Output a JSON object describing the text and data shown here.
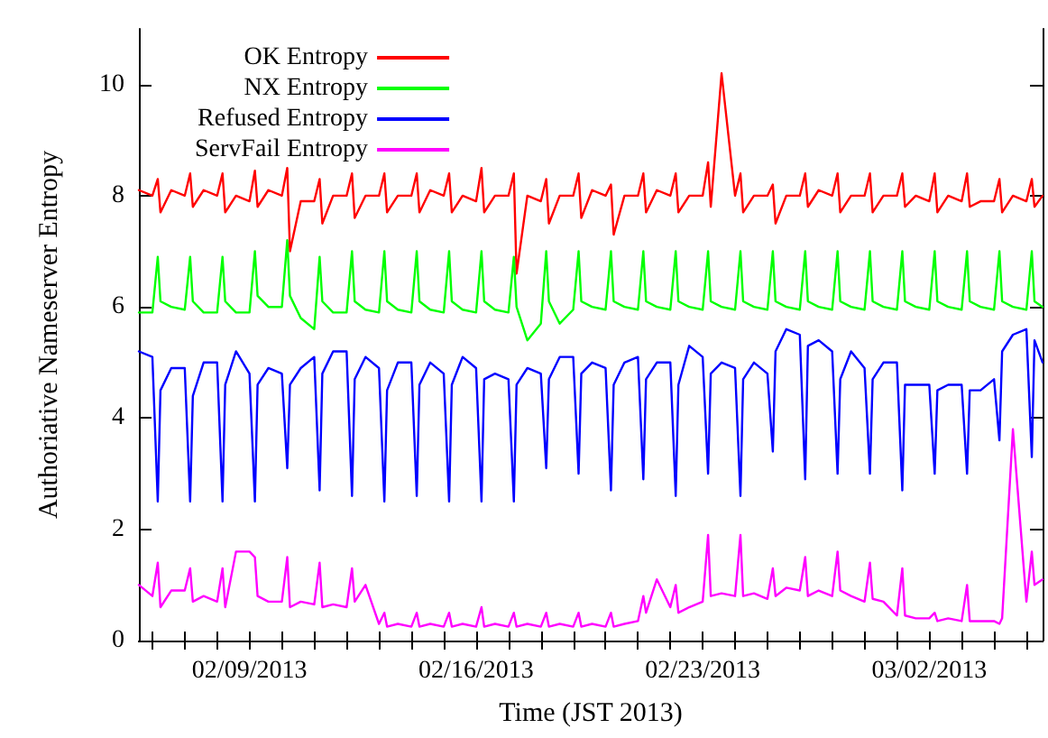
{
  "chart_data": {
    "type": "line",
    "xlabel": "Time (JST 2013)",
    "ylabel": "Authoriative Nameserver Entropy",
    "xlim": [
      "2013-02-05T14:00",
      "2013-03-05T12:00"
    ],
    "ylim": [
      0,
      11
    ],
    "xticks": [
      {
        "value": "2013-02-06",
        "label": null
      },
      {
        "value": "2013-02-07",
        "label": null
      },
      {
        "value": "2013-02-08",
        "label": null
      },
      {
        "value": "2013-02-09",
        "label": "02/09/2013"
      },
      {
        "value": "2013-02-10",
        "label": null
      },
      {
        "value": "2013-02-11",
        "label": null
      },
      {
        "value": "2013-02-12",
        "label": null
      },
      {
        "value": "2013-02-13",
        "label": null
      },
      {
        "value": "2013-02-14",
        "label": null
      },
      {
        "value": "2013-02-15",
        "label": null
      },
      {
        "value": "2013-02-16",
        "label": "02/16/2013"
      },
      {
        "value": "2013-02-17",
        "label": null
      },
      {
        "value": "2013-02-18",
        "label": null
      },
      {
        "value": "2013-02-19",
        "label": null
      },
      {
        "value": "2013-02-20",
        "label": null
      },
      {
        "value": "2013-02-21",
        "label": null
      },
      {
        "value": "2013-02-22",
        "label": null
      },
      {
        "value": "2013-02-23",
        "label": "02/23/2013"
      },
      {
        "value": "2013-02-24",
        "label": null
      },
      {
        "value": "2013-02-25",
        "label": null
      },
      {
        "value": "2013-02-26",
        "label": null
      },
      {
        "value": "2013-02-27",
        "label": null
      },
      {
        "value": "2013-02-28",
        "label": null
      },
      {
        "value": "2013-03-01",
        "label": null
      },
      {
        "value": "2013-03-02",
        "label": "03/02/2013"
      },
      {
        "value": "2013-03-03",
        "label": null
      },
      {
        "value": "2013-03-04",
        "label": null
      },
      {
        "value": "2013-03-05",
        "label": null
      }
    ],
    "yticks": [
      0,
      2,
      4,
      6,
      8,
      10
    ],
    "grid": false,
    "legend": "top left",
    "marker": "none",
    "line_style": "solid",
    "x": [
      "2013-02-05T14:00",
      "2013-02-06T00:00",
      "2013-02-06T04:00",
      "2013-02-06T06:00",
      "2013-02-06T14:00",
      "2013-02-07T00:00",
      "2013-02-07T04:00",
      "2013-02-07T06:00",
      "2013-02-07T14:00",
      "2013-02-08T00:00",
      "2013-02-08T04:00",
      "2013-02-08T06:00",
      "2013-02-08T14:00",
      "2013-02-09T00:00",
      "2013-02-09T04:00",
      "2013-02-09T06:00",
      "2013-02-09T14:00",
      "2013-02-10T00:00",
      "2013-02-10T04:00",
      "2013-02-10T06:00",
      "2013-02-10T14:00",
      "2013-02-11T00:00",
      "2013-02-11T04:00",
      "2013-02-11T06:00",
      "2013-02-11T14:00",
      "2013-02-12T00:00",
      "2013-02-12T04:00",
      "2013-02-12T06:00",
      "2013-02-12T14:00",
      "2013-02-13T00:00",
      "2013-02-13T04:00",
      "2013-02-13T06:00",
      "2013-02-13T14:00",
      "2013-02-14T00:00",
      "2013-02-14T04:00",
      "2013-02-14T06:00",
      "2013-02-14T14:00",
      "2013-02-15T00:00",
      "2013-02-15T04:00",
      "2013-02-15T06:00",
      "2013-02-15T14:00",
      "2013-02-16T00:00",
      "2013-02-16T04:00",
      "2013-02-16T06:00",
      "2013-02-16T14:00",
      "2013-02-17T00:00",
      "2013-02-17T04:00",
      "2013-02-17T06:00",
      "2013-02-17T14:00",
      "2013-02-18T00:00",
      "2013-02-18T04:00",
      "2013-02-18T06:00",
      "2013-02-18T14:00",
      "2013-02-19T00:00",
      "2013-02-19T04:00",
      "2013-02-19T06:00",
      "2013-02-19T14:00",
      "2013-02-20T00:00",
      "2013-02-20T04:00",
      "2013-02-20T06:00",
      "2013-02-20T14:00",
      "2013-02-21T00:00",
      "2013-02-21T04:00",
      "2013-02-21T06:00",
      "2013-02-21T14:00",
      "2013-02-22T00:00",
      "2013-02-22T04:00",
      "2013-02-22T06:00",
      "2013-02-22T14:00",
      "2013-02-23T00:00",
      "2013-02-23T04:00",
      "2013-02-23T06:00",
      "2013-02-23T14:00",
      "2013-02-24T00:00",
      "2013-02-24T04:00",
      "2013-02-24T06:00",
      "2013-02-24T14:00",
      "2013-02-25T00:00",
      "2013-02-25T04:00",
      "2013-02-25T06:00",
      "2013-02-25T14:00",
      "2013-02-26T00:00",
      "2013-02-26T04:00",
      "2013-02-26T06:00",
      "2013-02-26T14:00",
      "2013-02-27T00:00",
      "2013-02-27T04:00",
      "2013-02-27T06:00",
      "2013-02-27T14:00",
      "2013-02-28T00:00",
      "2013-02-28T04:00",
      "2013-02-28T06:00",
      "2013-02-28T14:00",
      "2013-03-01T00:00",
      "2013-03-01T04:00",
      "2013-03-01T06:00",
      "2013-03-01T14:00",
      "2013-03-02T00:00",
      "2013-03-02T04:00",
      "2013-03-02T06:00",
      "2013-03-02T14:00",
      "2013-03-03T00:00",
      "2013-03-03T04:00",
      "2013-03-03T06:00",
      "2013-03-03T14:00",
      "2013-03-04T00:00",
      "2013-03-04T04:00",
      "2013-03-04T06:00",
      "2013-03-04T14:00",
      "2013-03-05T00:00",
      "2013-03-05T04:00",
      "2013-03-05T06:00",
      "2013-03-05T12:00"
    ],
    "series": [
      {
        "name": "OK Entropy",
        "color": "#ff0000",
        "values": [
          8.1,
          8.0,
          8.3,
          7.7,
          8.1,
          8.0,
          8.4,
          7.8,
          8.1,
          8.0,
          8.4,
          7.7,
          8.0,
          7.9,
          8.45,
          7.8,
          8.1,
          8.0,
          8.5,
          7.0,
          7.9,
          7.9,
          8.3,
          7.5,
          8.0,
          8.0,
          8.4,
          7.6,
          8.0,
          8.0,
          8.4,
          7.7,
          8.0,
          8.0,
          8.4,
          7.7,
          8.1,
          8.0,
          8.4,
          7.7,
          8.0,
          7.9,
          8.5,
          7.7,
          8.0,
          8.0,
          8.4,
          6.6,
          8.0,
          7.9,
          8.3,
          7.5,
          8.0,
          8.0,
          8.4,
          7.6,
          8.1,
          8.0,
          8.2,
          7.3,
          8.0,
          8.0,
          8.4,
          7.7,
          8.1,
          8.0,
          8.4,
          7.7,
          8.0,
          8.0,
          8.6,
          7.8,
          10.2,
          8.0,
          8.4,
          7.7,
          8.0,
          8.0,
          8.2,
          7.5,
          8.0,
          8.0,
          8.4,
          7.8,
          8.1,
          8.0,
          8.4,
          7.7,
          8.0,
          8.0,
          8.4,
          7.7,
          8.0,
          8.0,
          8.4,
          7.8,
          8.0,
          7.9,
          8.4,
          7.7,
          8.0,
          7.9,
          8.4,
          7.8,
          7.9,
          7.9,
          8.3,
          7.7,
          8.0,
          7.9,
          8.3,
          7.8,
          8.0
        ]
      },
      {
        "name": "NX Entropy",
        "color": "#00ff00",
        "values": [
          5.9,
          5.9,
          6.9,
          6.1,
          6.0,
          5.95,
          6.9,
          6.1,
          5.9,
          5.9,
          6.9,
          6.1,
          5.9,
          5.9,
          7.0,
          6.2,
          6.0,
          6.0,
          7.2,
          6.2,
          5.8,
          5.6,
          6.9,
          6.1,
          5.9,
          5.9,
          7.0,
          6.1,
          5.95,
          5.9,
          7.0,
          6.1,
          5.95,
          5.9,
          7.0,
          6.1,
          5.95,
          5.9,
          7.0,
          6.1,
          5.95,
          5.9,
          7.0,
          6.1,
          5.95,
          5.9,
          6.9,
          6.0,
          5.4,
          5.7,
          7.0,
          6.1,
          5.7,
          5.95,
          7.0,
          6.1,
          6.0,
          5.95,
          7.0,
          6.1,
          6.0,
          5.95,
          7.0,
          6.1,
          6.0,
          5.95,
          7.0,
          6.1,
          6.0,
          5.95,
          7.0,
          6.1,
          6.0,
          5.95,
          7.0,
          6.1,
          6.0,
          5.95,
          7.0,
          6.1,
          6.0,
          5.95,
          7.0,
          6.1,
          6.0,
          5.95,
          7.0,
          6.1,
          6.0,
          5.95,
          7.0,
          6.1,
          6.0,
          5.95,
          7.0,
          6.1,
          6.0,
          5.95,
          7.0,
          6.1,
          6.0,
          5.95,
          7.0,
          6.1,
          6.0,
          5.95,
          7.0,
          6.1,
          6.0,
          5.95,
          7.0,
          6.1,
          6.0
        ]
      },
      {
        "name": "Refused Entropy",
        "color": "#0000ff",
        "values": [
          5.2,
          5.1,
          2.5,
          4.5,
          4.9,
          4.9,
          2.5,
          4.4,
          5.0,
          5.0,
          2.5,
          4.6,
          5.2,
          4.8,
          2.5,
          4.6,
          4.9,
          4.8,
          3.1,
          4.6,
          4.9,
          5.1,
          2.7,
          4.8,
          5.2,
          5.2,
          2.6,
          4.7,
          5.1,
          4.9,
          2.5,
          4.5,
          5.0,
          5.0,
          2.6,
          4.6,
          5.0,
          4.8,
          2.5,
          4.6,
          5.1,
          4.9,
          2.5,
          4.7,
          4.8,
          4.7,
          2.5,
          4.6,
          4.9,
          4.8,
          3.1,
          4.7,
          5.1,
          5.1,
          3.0,
          4.8,
          5.0,
          4.9,
          2.7,
          4.6,
          5.0,
          5.1,
          2.9,
          4.7,
          5.0,
          5.0,
          2.6,
          4.6,
          5.3,
          5.1,
          3.0,
          4.8,
          5.0,
          4.9,
          2.6,
          4.7,
          5.0,
          4.8,
          3.4,
          5.2,
          5.6,
          5.5,
          2.9,
          5.3,
          5.4,
          5.2,
          3.0,
          4.7,
          5.2,
          4.9,
          3.0,
          4.7,
          5.0,
          5.0,
          2.7,
          4.6,
          4.6,
          4.6,
          3.0,
          4.5,
          4.6,
          4.6,
          3.0,
          4.5,
          4.5,
          4.7,
          3.6,
          5.2,
          5.5,
          5.6,
          3.3,
          5.4,
          5.0
        ]
      },
      {
        "name": "ServFail Entropy",
        "color": "#ff00ff",
        "values": [
          1.0,
          0.8,
          1.4,
          0.6,
          0.9,
          0.9,
          1.3,
          0.7,
          0.8,
          0.7,
          1.3,
          0.6,
          1.6,
          1.6,
          1.5,
          0.8,
          0.7,
          0.7,
          1.5,
          0.6,
          0.7,
          0.65,
          1.4,
          0.6,
          0.65,
          0.6,
          1.3,
          0.7,
          1.0,
          0.3,
          0.5,
          0.25,
          0.3,
          0.25,
          0.5,
          0.25,
          0.3,
          0.25,
          0.5,
          0.25,
          0.3,
          0.25,
          0.6,
          0.25,
          0.3,
          0.25,
          0.5,
          0.25,
          0.3,
          0.25,
          0.5,
          0.25,
          0.3,
          0.25,
          0.5,
          0.25,
          0.3,
          0.25,
          0.5,
          0.25,
          0.3,
          0.35,
          0.8,
          0.5,
          1.1,
          0.6,
          1.0,
          0.5,
          0.6,
          0.7,
          1.9,
          0.8,
          0.85,
          0.8,
          1.9,
          0.8,
          0.85,
          0.75,
          1.3,
          0.8,
          0.95,
          0.9,
          1.5,
          0.8,
          0.9,
          0.8,
          1.6,
          0.9,
          0.8,
          0.7,
          1.4,
          0.75,
          0.7,
          0.45,
          1.3,
          0.45,
          0.4,
          0.4,
          0.5,
          0.35,
          0.4,
          0.35,
          1.0,
          0.35,
          0.35,
          0.35,
          0.3,
          0.4,
          3.8,
          0.7,
          1.6,
          1.0,
          1.1
        ]
      }
    ]
  }
}
